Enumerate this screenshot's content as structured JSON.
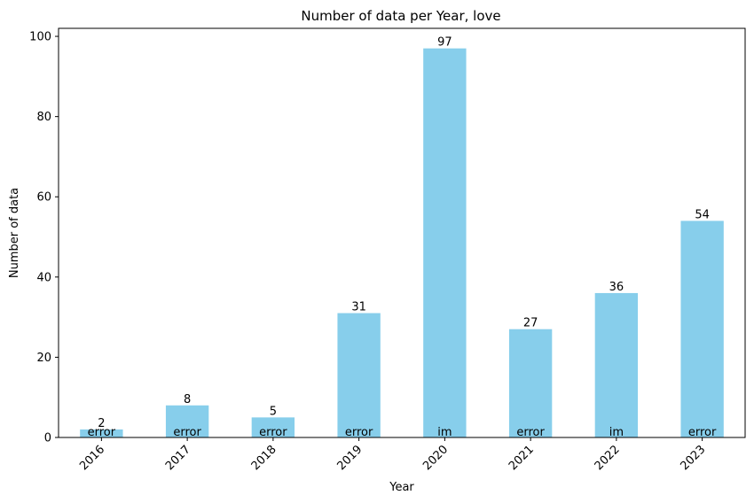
{
  "chart_data": {
    "type": "bar",
    "title": "Number of data per Year, love",
    "xlabel": "Year",
    "ylabel": "Number of data",
    "categories": [
      "2016",
      "2017",
      "2018",
      "2019",
      "2020",
      "2021",
      "2022",
      "2023"
    ],
    "values": [
      2,
      8,
      5,
      31,
      97,
      27,
      36,
      54
    ],
    "bar_labels": [
      "error",
      "error",
      "error",
      "error",
      "im",
      "error",
      "im",
      "error"
    ],
    "ylim": [
      0,
      102
    ],
    "yticks": [
      0,
      20,
      40,
      60,
      80,
      100
    ],
    "x_tick_rotation": 45,
    "grid": false,
    "legend": "none",
    "bar_color": "#87ceeb"
  }
}
